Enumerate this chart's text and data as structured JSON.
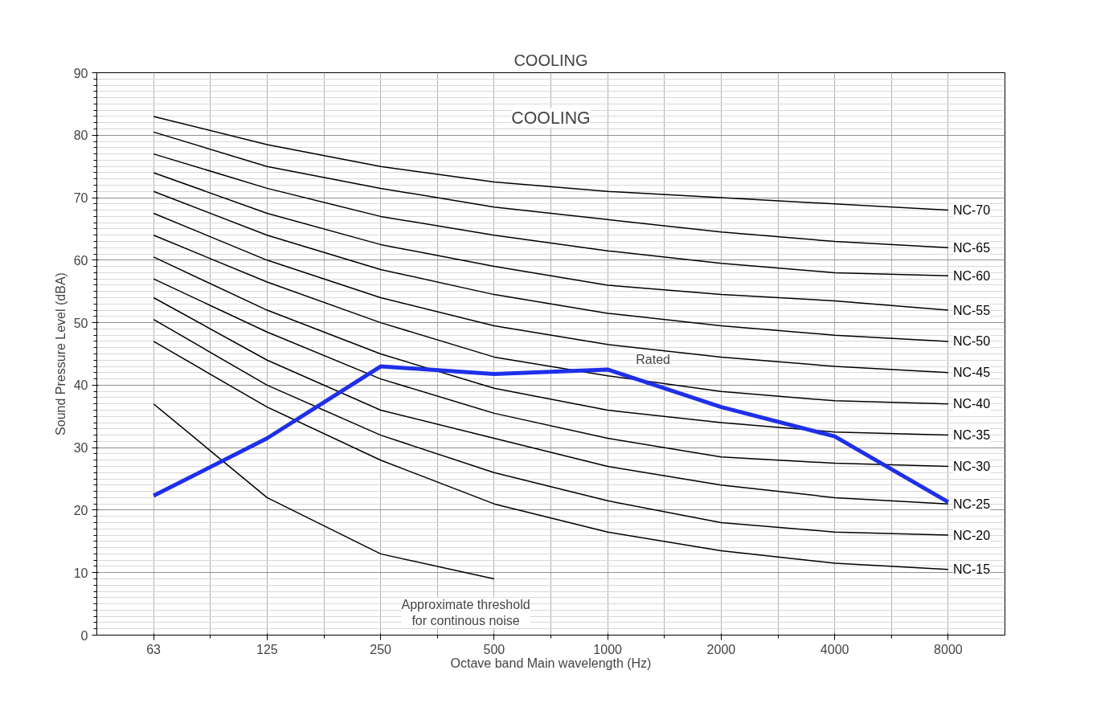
{
  "chart_data": {
    "type": "line",
    "title": "COOLING",
    "xlabel": "Octave band Main wavelength (Hz)",
    "ylabel": "Sound Pressure Level (dBA)",
    "categories": [
      "63",
      "125",
      "250",
      "500",
      "1000",
      "2000",
      "4000",
      "8000"
    ],
    "ylim": [
      0,
      90
    ],
    "yticks": [
      0,
      10,
      20,
      30,
      40,
      50,
      60,
      70,
      80,
      90
    ],
    "grid": true,
    "marker": "none",
    "line_style": "solid",
    "annotations": [
      "COOLING",
      "Rated",
      "Approximate threshold\nfor continous noise"
    ],
    "series": [
      {
        "name": "NC-70",
        "color": "#000000",
        "values": [
          83,
          78.5,
          75,
          72.5,
          71,
          70,
          69,
          68
        ]
      },
      {
        "name": "NC-65",
        "color": "#000000",
        "values": [
          80.5,
          75,
          71.5,
          68.5,
          66.5,
          64.5,
          63,
          62
        ]
      },
      {
        "name": "NC-60",
        "color": "#000000",
        "values": [
          77,
          71.5,
          67,
          64,
          61.5,
          59.5,
          58,
          57.5
        ]
      },
      {
        "name": "NC-55",
        "color": "#000000",
        "values": [
          74,
          67.5,
          62.5,
          59,
          56,
          54.5,
          53.5,
          52
        ]
      },
      {
        "name": "NC-50",
        "color": "#000000",
        "values": [
          71,
          64,
          58.5,
          54.5,
          51.5,
          49.5,
          48,
          47
        ]
      },
      {
        "name": "NC-45",
        "color": "#000000",
        "values": [
          67.5,
          60,
          54,
          49.5,
          46.5,
          44.5,
          43,
          42
        ]
      },
      {
        "name": "NC-40",
        "color": "#000000",
        "values": [
          64,
          56.5,
          50,
          44.5,
          41.5,
          39,
          37.5,
          37
        ]
      },
      {
        "name": "NC-35",
        "color": "#000000",
        "values": [
          60.5,
          52,
          45,
          39.5,
          36,
          34,
          32.5,
          32
        ]
      },
      {
        "name": "NC-30",
        "color": "#000000",
        "values": [
          57,
          48.5,
          41,
          35.5,
          31.5,
          28.5,
          27.5,
          27
        ]
      },
      {
        "name": "NC-25",
        "color": "#000000",
        "values": [
          54,
          44,
          36,
          31.5,
          27,
          24,
          22,
          21
        ]
      },
      {
        "name": "NC-20",
        "color": "#000000",
        "values": [
          50.5,
          40,
          32,
          26,
          21.5,
          18,
          16.5,
          16
        ]
      },
      {
        "name": "NC-15",
        "color": "#000000",
        "values": [
          47,
          36.5,
          28,
          21,
          16.5,
          13.5,
          11.5,
          10.5
        ]
      },
      {
        "color": "#000000",
        "values": [
          37,
          22,
          13,
          9,
          null,
          null,
          null,
          null
        ]
      },
      {
        "color": "#1f2fe8",
        "values": [
          22.3,
          31.5,
          43,
          41.8,
          42.5,
          36.5,
          31.8,
          21.3
        ]
      }
    ]
  }
}
